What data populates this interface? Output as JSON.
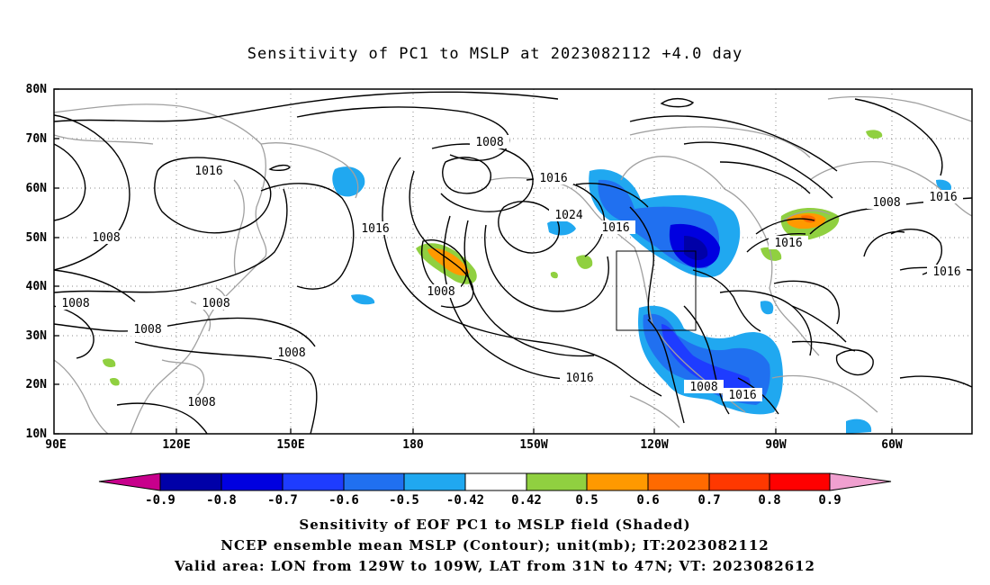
{
  "title": "Sensitivity of PC1 to MSLP at 2023082112 +4.0 day",
  "map": {
    "lat_labels": [
      "80N",
      "70N",
      "60N",
      "50N",
      "40N",
      "30N",
      "20N",
      "10N"
    ],
    "lon_labels": [
      "90E",
      "120E",
      "150E",
      "180",
      "150W",
      "120W",
      "90W",
      "60W"
    ],
    "lon_range": [
      "90E",
      "45W"
    ],
    "lat_range": [
      "10N",
      "80N"
    ],
    "grid": "dotted",
    "contour_color": "#000000",
    "coastline_color": "#a0a0a0",
    "contour_labels": [
      {
        "text": "1008"
      },
      {
        "text": "1016"
      },
      {
        "text": "1008"
      },
      {
        "text": "1016"
      },
      {
        "text": "1024"
      },
      {
        "text": "1016"
      },
      {
        "text": "1016"
      },
      {
        "text": "1008"
      },
      {
        "text": "1016"
      },
      {
        "text": "1016"
      },
      {
        "text": "1008"
      },
      {
        "text": "1008"
      },
      {
        "text": "1008"
      },
      {
        "text": "1008"
      },
      {
        "text": "1008"
      },
      {
        "text": "1016"
      },
      {
        "text": "1008"
      },
      {
        "text": "1016"
      },
      {
        "text": "1008"
      },
      {
        "text": "1016"
      }
    ],
    "valid_area_box": {
      "lon": [
        "129W",
        "109W"
      ],
      "lat": [
        "31N",
        "47N"
      ]
    }
  },
  "colorbar": {
    "labels": [
      "-0.9",
      "-0.8",
      "-0.7",
      "-0.6",
      "-0.5",
      "-0.42",
      "0.42",
      "0.5",
      "0.6",
      "0.7",
      "0.8",
      "0.9"
    ],
    "colors": [
      "#c8008c",
      "#0000a8",
      "#0000e0",
      "#1e3cff",
      "#2070f0",
      "#20a8f0",
      "#00d8f8",
      "#ffffff",
      "#90d040",
      "#ff9900",
      "#ff6a00",
      "#ff3800",
      "#ff0000",
      "#f0a0d0"
    ]
  },
  "captions": {
    "line1": "Sensitivity of EOF PC1 to MSLP field (Shaded)",
    "line2": "NCEP ensemble mean MSLP (Contour); unit(mb); IT:2023082112",
    "line3": "Valid area: LON from 129W to 109W, LAT from 31N to 47N; VT: 2023082612"
  }
}
